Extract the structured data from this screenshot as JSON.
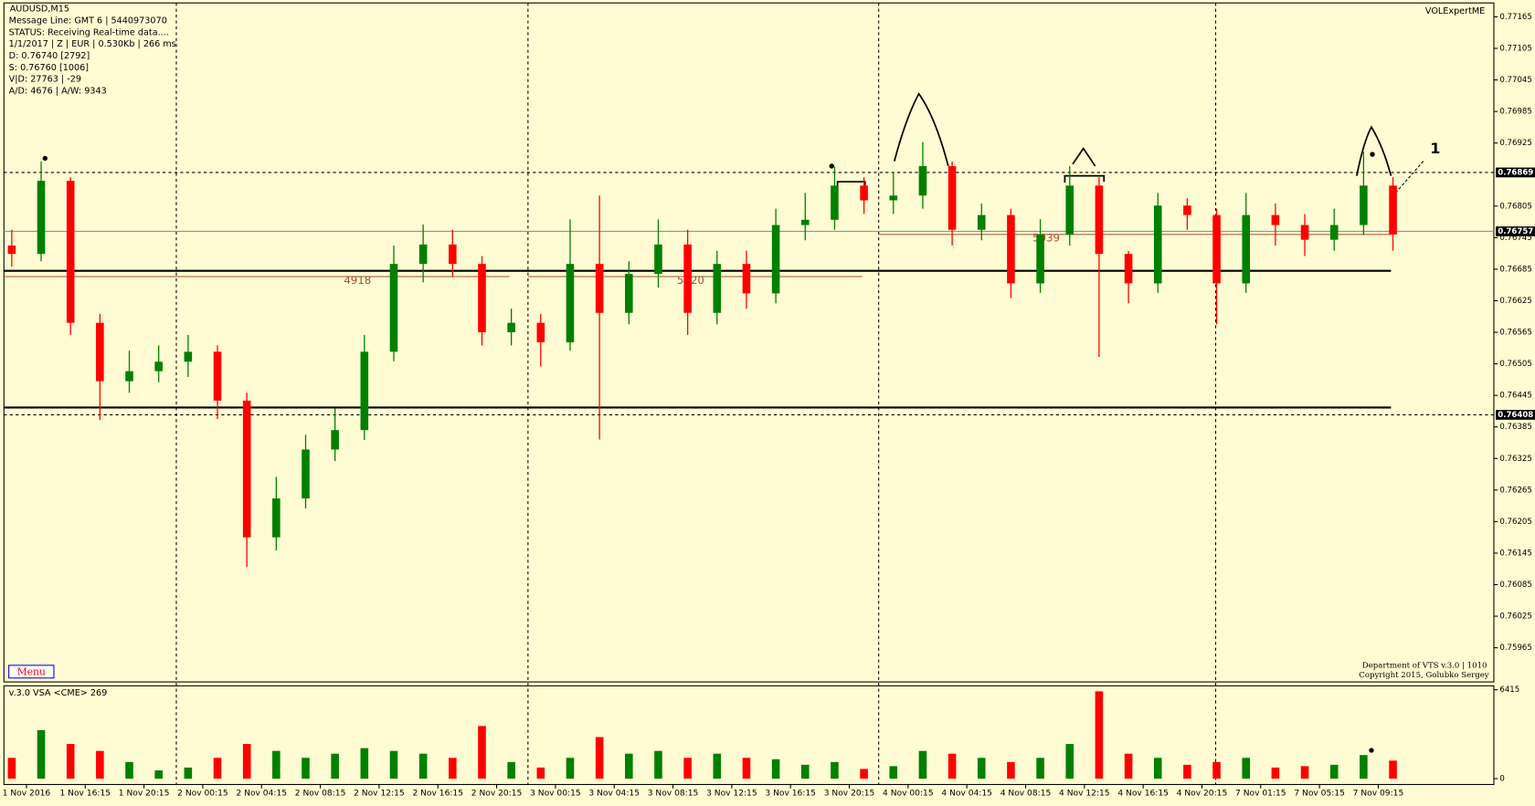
{
  "chart_data": {
    "type": "candlestick",
    "title": "AUDUSD,M15",
    "info_lines": [
      "Message Line: GMT 6 | 5440973070",
      "STATUS:  Receiving Real-time data....",
      "1/1/2017 | Z | EUR | 0.530Kb | 266 ms",
      "D: 0.76740  [2792]",
      "S: 0.76760  [1006]",
      "V|D: 27763  | -29",
      "A/D: 4676  | A/W: 9343"
    ],
    "brand": "VOLExpertME",
    "menu": "Menu",
    "footer": [
      "Department of VTS  v.3.0 | 1010",
      "Copyright 2015, Golubko Sergey"
    ],
    "annotation": "1",
    "x_labels": [
      "1 Nov 2016",
      "1 Nov 16:15",
      "1 Nov 20:15",
      "2 Nov 00:15",
      "2 Nov 04:15",
      "2 Nov 08:15",
      "2 Nov 12:15",
      "2 Nov 16:15",
      "2 Nov 20:15",
      "3 Nov 00:15",
      "3 Nov 04:15",
      "3 Nov 08:15",
      "3 Nov 12:15",
      "3 Nov 16:15",
      "3 Nov 20:15",
      "4 Nov 00:15",
      "4 Nov 04:15",
      "4 Nov 08:15",
      "4 Nov 12:15",
      "4 Nov 16:15",
      "4 Nov 20:15",
      "7 Nov 01:15",
      "7 Nov 05:15",
      "7 Nov 09:15"
    ],
    "up_color": "#008000",
    "down_color": "#ff0000",
    "ohlc": [
      [
        0.7673,
        0.7676,
        0.7669,
        0.76714
      ],
      [
        0.76714,
        0.7689,
        0.767,
        0.76853
      ],
      [
        0.76853,
        0.7686,
        0.7656,
        0.76583
      ],
      [
        0.76583,
        0.766,
        0.76398,
        0.76472
      ],
      [
        0.76472,
        0.7653,
        0.7645,
        0.76491
      ],
      [
        0.76491,
        0.7654,
        0.7647,
        0.76509
      ],
      [
        0.76509,
        0.7656,
        0.7648,
        0.76528
      ],
      [
        0.76528,
        0.7654,
        0.764,
        0.76435
      ],
      [
        0.76435,
        0.7645,
        0.76119,
        0.76175
      ],
      [
        0.76175,
        0.7629,
        0.7615,
        0.76249
      ],
      [
        0.76249,
        0.7637,
        0.7623,
        0.76342
      ],
      [
        0.76342,
        0.7642,
        0.7632,
        0.76379
      ],
      [
        0.76379,
        0.7656,
        0.7636,
        0.76528
      ],
      [
        0.76528,
        0.7673,
        0.7651,
        0.76695
      ],
      [
        0.76695,
        0.7677,
        0.7666,
        0.76732
      ],
      [
        0.76732,
        0.7676,
        0.7667,
        0.76695
      ],
      [
        0.76695,
        0.7671,
        0.7654,
        0.76565
      ],
      [
        0.76565,
        0.7661,
        0.7654,
        0.76583
      ],
      [
        0.76583,
        0.766,
        0.765,
        0.76546
      ],
      [
        0.76546,
        0.7678,
        0.7653,
        0.76695
      ],
      [
        0.76695,
        0.76825,
        0.76361,
        0.76602
      ],
      [
        0.76602,
        0.767,
        0.7658,
        0.76676
      ],
      [
        0.76676,
        0.7678,
        0.7665,
        0.76732
      ],
      [
        0.76732,
        0.7676,
        0.7656,
        0.76602
      ],
      [
        0.76602,
        0.7672,
        0.7658,
        0.76695
      ],
      [
        0.76695,
        0.7672,
        0.7661,
        0.76639
      ],
      [
        0.76639,
        0.768,
        0.7662,
        0.76769
      ],
      [
        0.76769,
        0.7683,
        0.7674,
        0.76779
      ],
      [
        0.76779,
        0.7688,
        0.7676,
        0.76844
      ],
      [
        0.76844,
        0.7686,
        0.7679,
        0.76816
      ],
      [
        0.76816,
        0.7687,
        0.7679,
        0.76825
      ],
      [
        0.76825,
        0.76927,
        0.768,
        0.76881
      ],
      [
        0.76881,
        0.7689,
        0.7673,
        0.7676
      ],
      [
        0.7676,
        0.7681,
        0.7674,
        0.76788
      ],
      [
        0.76788,
        0.768,
        0.7663,
        0.76658
      ],
      [
        0.76658,
        0.7678,
        0.7664,
        0.76751
      ],
      [
        0.76751,
        0.76881,
        0.7673,
        0.76844
      ],
      [
        0.76844,
        0.7686,
        0.76518,
        0.76714
      ],
      [
        0.76714,
        0.7672,
        0.7662,
        0.76658
      ],
      [
        0.76658,
        0.7683,
        0.7664,
        0.76806
      ],
      [
        0.76806,
        0.7682,
        0.7676,
        0.76788
      ],
      [
        0.76788,
        0.768,
        0.7658,
        0.76658
      ],
      [
        0.76658,
        0.7683,
        0.7664,
        0.76788
      ],
      [
        0.76788,
        0.7681,
        0.7673,
        0.76769
      ],
      [
        0.76769,
        0.7679,
        0.7671,
        0.76741
      ],
      [
        0.76741,
        0.768,
        0.7672,
        0.76769
      ],
      [
        0.76769,
        0.76909,
        0.7675,
        0.76844
      ],
      [
        0.76844,
        0.7686,
        0.7672,
        0.76751
      ]
    ],
    "ylim": [
      0.759,
      0.77197
    ],
    "yticks": [
      0.77165,
      0.77105,
      0.77045,
      0.76985,
      0.76925,
      0.76805,
      0.76745,
      0.76685,
      0.76625,
      0.76565,
      0.76505,
      0.76445,
      0.76385,
      0.76325,
      0.76265,
      0.76205,
      0.76145,
      0.76085,
      0.76025,
      0.75965
    ],
    "price_tags": [
      0.76869,
      0.76757,
      0.76408
    ],
    "levels": [
      0.76682,
      0.76422
    ],
    "profile_labels": [
      {
        "label": "4918",
        "price": 0.76671
      },
      {
        "label": "5120",
        "price": 0.76671
      },
      {
        "label": "5039",
        "price": 0.76751
      }
    ],
    "volume_title": "v.3.0 VSA <CME> 269",
    "volume": [
      1500,
      3500,
      2500,
      2000,
      1200,
      600,
      800,
      1500,
      2500,
      2000,
      1500,
      1800,
      2200,
      2000,
      1800,
      1500,
      3800,
      1200,
      800,
      1500,
      3000,
      1800,
      2000,
      1500,
      1800,
      1500,
      1400,
      1000,
      1200,
      700,
      900,
      2000,
      1800,
      1500,
      1200,
      1500,
      2500,
      6300,
      1800,
      1500,
      1000,
      1200,
      1500,
      800,
      900,
      1000,
      1700,
      1300
    ],
    "volume_ylim": [
      0,
      6415
    ],
    "volume_yticks": [
      6415,
      0
    ]
  }
}
